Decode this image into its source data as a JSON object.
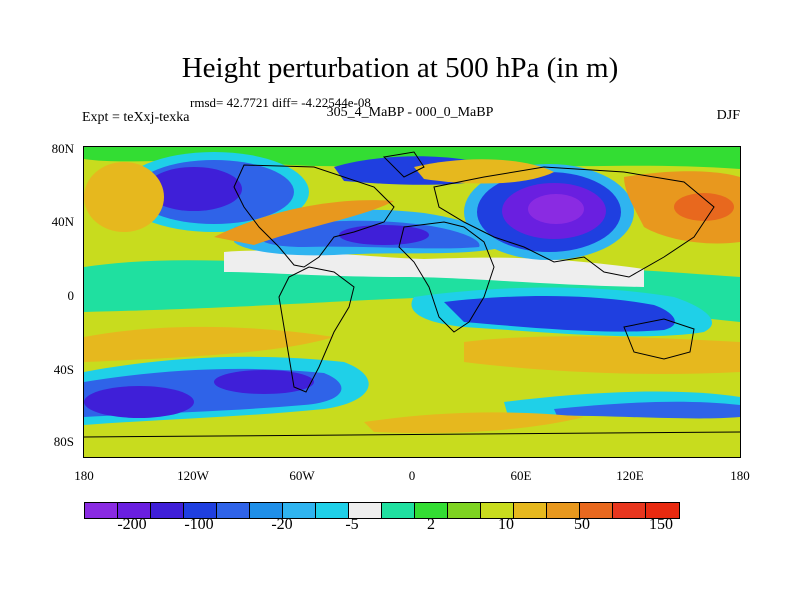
{
  "title": "Height perturbation at 500 hPa (in m)",
  "stats": "rmsd= 42.7721 diff= -4.22544e-08",
  "expt": "Expt = teXxj-texka",
  "period": "305_4_MaBP - 000_0_MaBP",
  "season": "DJF",
  "map": {
    "lat_ticks": [
      "80N",
      "40N",
      "0",
      "40S",
      "80S"
    ],
    "lon_ticks": [
      "180",
      "120W",
      "60W",
      "0",
      "60E",
      "120E",
      "180"
    ]
  },
  "colorbar": {
    "colors": [
      "#8a2be2",
      "#6a1fe0",
      "#3f1fd8",
      "#1f3fe0",
      "#2f63e8",
      "#1f8fe8",
      "#2fb4f0",
      "#1fd0e8",
      "#eeeeee",
      "#1fe0a0",
      "#33dd33",
      "#7ed321",
      "#c8dc1e",
      "#e6b81e",
      "#e8981e",
      "#e8681e",
      "#e8361e",
      "#e82a10"
    ],
    "labels": [
      "-200",
      "-100",
      "-20",
      "-5",
      "2",
      "10",
      "50",
      "150"
    ]
  }
}
